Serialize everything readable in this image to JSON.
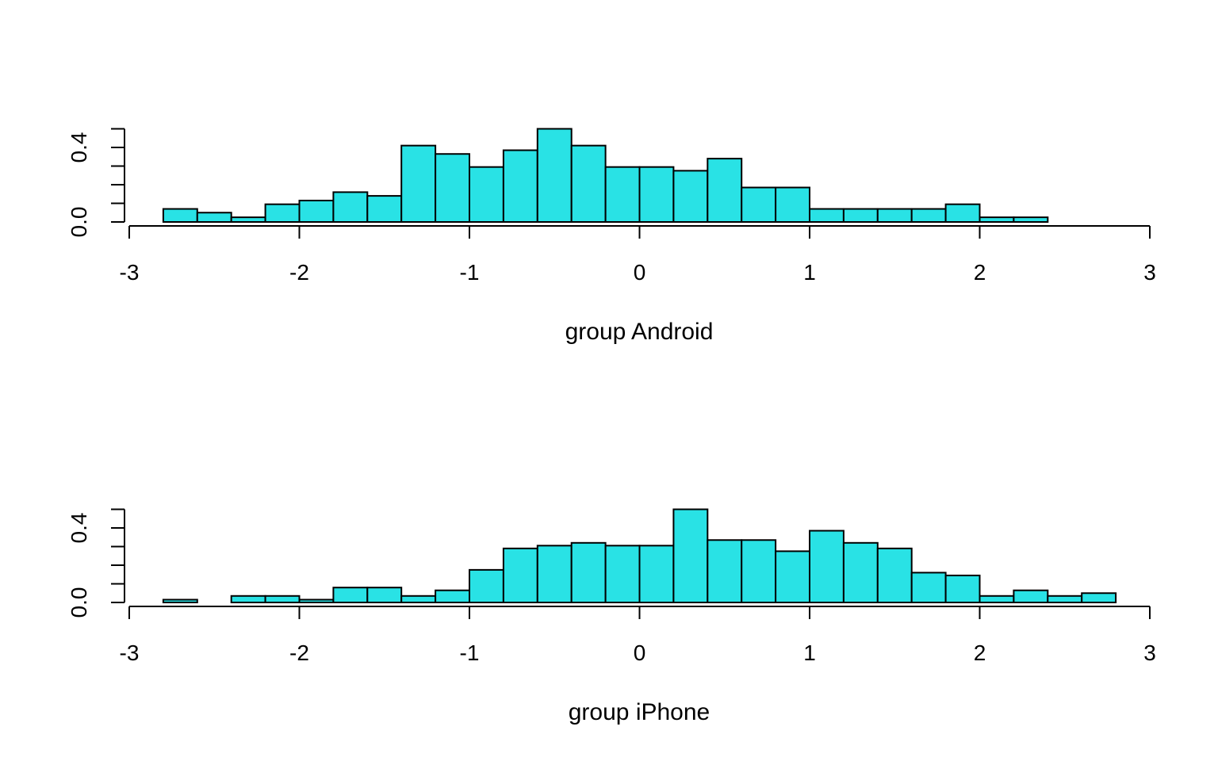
{
  "chart_data": [
    {
      "type": "bar",
      "xlabel": "group Android",
      "ylabel": "",
      "title": "",
      "xlim": [
        -3,
        3
      ],
      "ylim": [
        0,
        0.5
      ],
      "x_ticks": [
        "-3",
        "-2",
        "-1",
        "0",
        "1",
        "2",
        "3"
      ],
      "y_ticks": [
        "0.0",
        "0.4"
      ],
      "bin_width": 0.2,
      "bin_edges": [
        -2.8,
        -2.6,
        -2.4,
        -2.2,
        -2.0,
        -1.8,
        -1.6,
        -1.4,
        -1.2,
        -1.0,
        -0.8,
        -0.6,
        -0.4,
        -0.2,
        0.0,
        0.2,
        0.4,
        0.6,
        0.8,
        1.0,
        1.2,
        1.4,
        1.6,
        1.8,
        2.0,
        2.2,
        2.4,
        2.6,
        2.8
      ],
      "values": [
        0.07,
        0.05,
        0.025,
        0.095,
        0.115,
        0.16,
        0.14,
        0.41,
        0.365,
        0.295,
        0.385,
        0.5,
        0.41,
        0.295,
        0.295,
        0.275,
        0.34,
        0.185,
        0.185,
        0.07,
        0.07,
        0.07,
        0.07,
        0.095,
        0.025,
        0.025,
        0.0,
        0.0
      ],
      "fill_color": "#29E2E5",
      "edge_color": "#000000"
    },
    {
      "type": "bar",
      "xlabel": "group iPhone",
      "ylabel": "",
      "title": "",
      "xlim": [
        -3,
        3
      ],
      "ylim": [
        0,
        0.5
      ],
      "x_ticks": [
        "-3",
        "-2",
        "-1",
        "0",
        "1",
        "2",
        "3"
      ],
      "y_ticks": [
        "0.0",
        "0.4"
      ],
      "bin_width": 0.2,
      "bin_edges": [
        -2.8,
        -2.6,
        -2.4,
        -2.2,
        -2.0,
        -1.8,
        -1.6,
        -1.4,
        -1.2,
        -1.0,
        -0.8,
        -0.6,
        -0.4,
        -0.2,
        0.0,
        0.2,
        0.4,
        0.6,
        0.8,
        1.0,
        1.2,
        1.4,
        1.6,
        1.8,
        2.0,
        2.2,
        2.4,
        2.6,
        2.8
      ],
      "values": [
        0.015,
        0.0,
        0.035,
        0.035,
        0.015,
        0.08,
        0.08,
        0.035,
        0.065,
        0.175,
        0.29,
        0.305,
        0.32,
        0.305,
        0.305,
        0.5,
        0.335,
        0.335,
        0.275,
        0.385,
        0.32,
        0.29,
        0.16,
        0.145,
        0.035,
        0.065,
        0.035,
        0.05
      ],
      "fill_color": "#29E2E5",
      "edge_color": "#000000"
    }
  ]
}
